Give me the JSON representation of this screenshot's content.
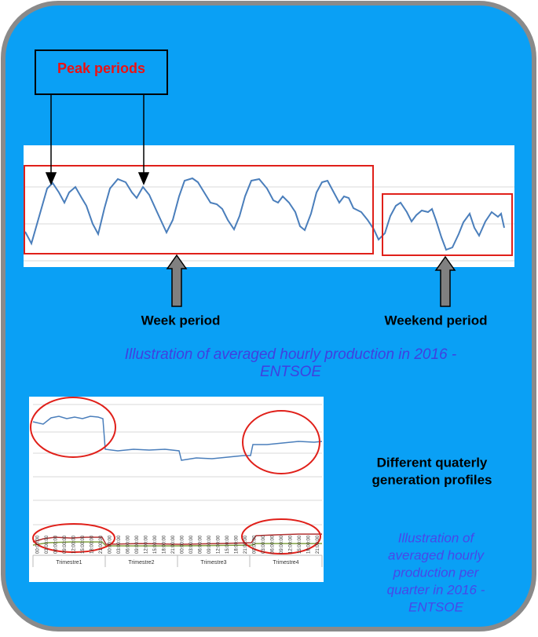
{
  "peak_label": "Peak periods",
  "week_label": "Week period",
  "weekend_label": "Weekend period",
  "hourly_caption": [
    "Illustration of averaged hourly production in 2016 -",
    "ENTSOE"
  ],
  "profiles_note": [
    "Different quaterly",
    "generation  profiles"
  ],
  "quarter_caption": [
    "Illustration of",
    "averaged hourly",
    "production per",
    "quarter in 2016 -",
    "ENTSOE"
  ],
  "quarter_chart": {
    "time_labels": [
      "00:00:00",
      "03:00:00",
      "06:00:00",
      "09:00:00",
      "12:00:00",
      "15:00:00",
      "18:00:00",
      "21:00:00"
    ],
    "quarters": [
      "Trimestre1",
      "Trimestre2",
      "Trimestre3",
      "Trimestre4"
    ]
  }
}
